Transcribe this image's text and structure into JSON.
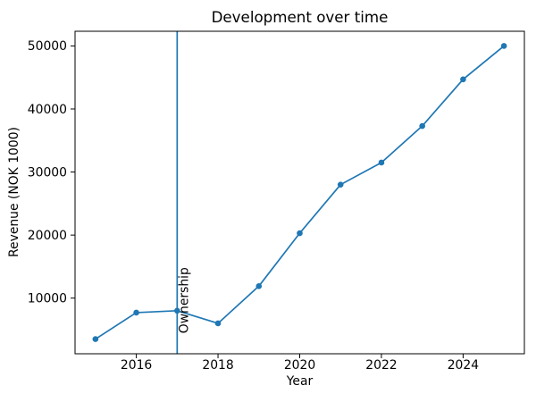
{
  "figure": {
    "background": "#ffffff",
    "spine_color": "#000000",
    "text_color": "#000000"
  },
  "chart_data": {
    "type": "line",
    "title": "Development over time",
    "xlabel": "Year",
    "ylabel": "Revenue (NOK 1000)",
    "x": [
      2015,
      2016,
      2017,
      2018,
      2019,
      2020,
      2021,
      2022,
      2023,
      2024,
      2025
    ],
    "series": [
      {
        "name": "Revenue (NOK 1000)",
        "values": [
          3500,
          7700,
          8000,
          6000,
          11900,
          20300,
          28000,
          31500,
          37300,
          44700,
          50000
        ]
      }
    ],
    "xticks": [
      2016,
      2018,
      2020,
      2022,
      2024
    ],
    "yticks": [
      10000,
      20000,
      30000,
      40000,
      50000
    ],
    "xlim": [
      2014.5,
      2025.5
    ],
    "ylim": [
      1175,
      52325
    ],
    "grid": false,
    "legend": "none",
    "line_color": "#1f77b4",
    "marker": "circle",
    "annotation": {
      "type": "vline",
      "x": 2017,
      "label": "Ownership",
      "label_y": 4400,
      "color": "#1f77b4"
    }
  }
}
